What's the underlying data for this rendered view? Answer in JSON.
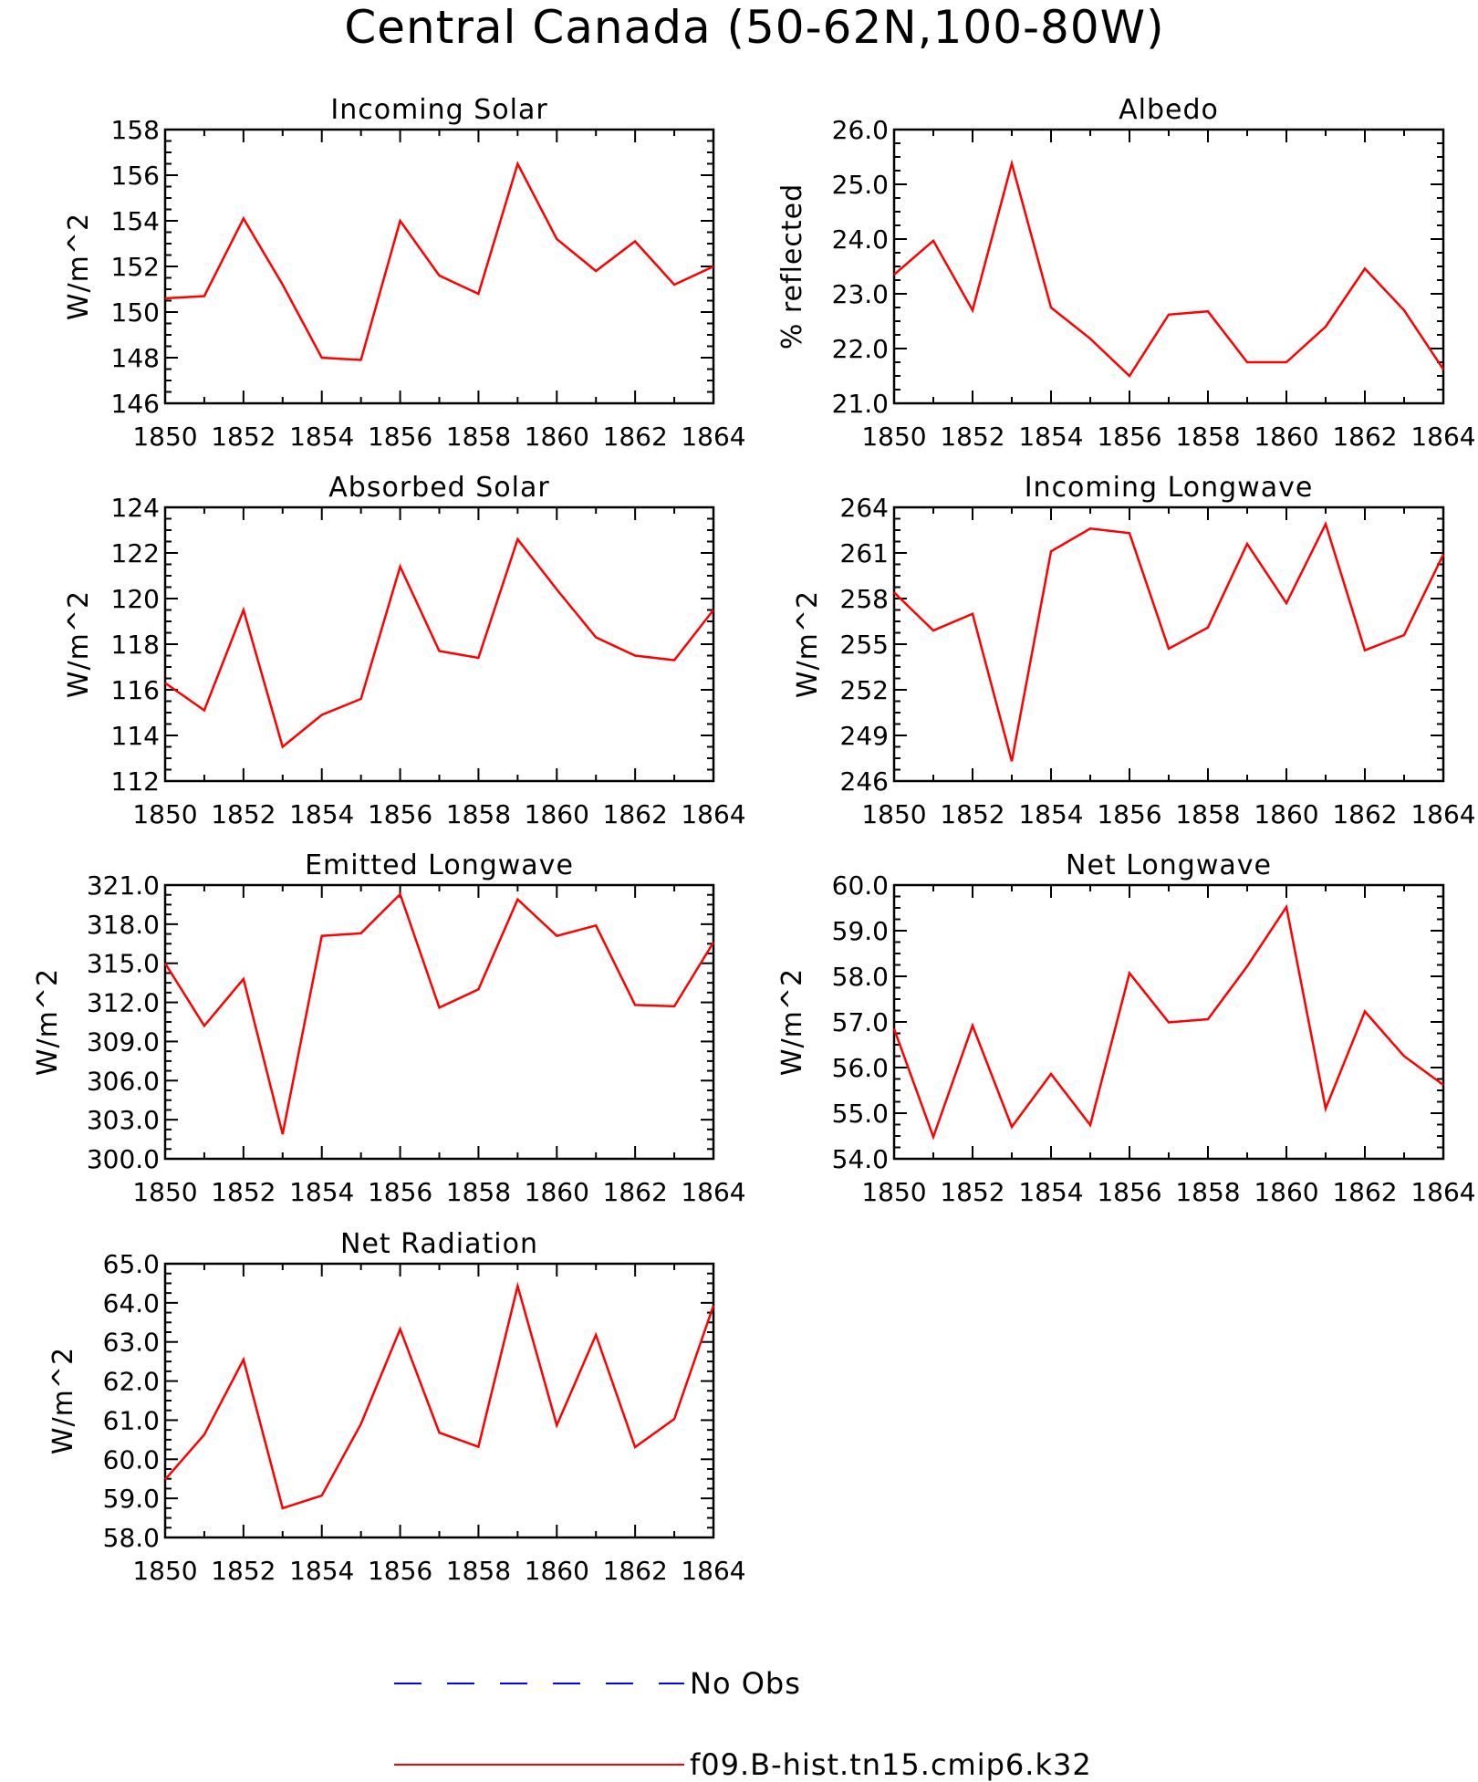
{
  "figure_title": "Central Canada (50-62N,100-80W)",
  "legend": [
    {
      "label": "No Obs",
      "color": "#0000ff",
      "dash": true
    },
    {
      "label": "f09.B-hist.tn15.cmip6.k32",
      "color": "#ff0000",
      "dash": false
    }
  ],
  "chart_data": [
    {
      "type": "line",
      "title": "Incoming Solar",
      "ylabel": "W/m^2",
      "xlim": [
        1850,
        1864
      ],
      "ylim": [
        146,
        158
      ],
      "yticks": [
        146,
        148,
        150,
        152,
        154,
        156,
        158
      ],
      "ytick_labels": [
        "146",
        "148",
        "150",
        "152",
        "154",
        "156",
        "158"
      ],
      "xticks": [
        1850,
        1852,
        1854,
        1856,
        1858,
        1860,
        1862,
        1864
      ],
      "x": [
        1850,
        1851,
        1852,
        1853,
        1854,
        1855,
        1856,
        1857,
        1858,
        1859,
        1860,
        1861,
        1862,
        1863,
        1864
      ],
      "series": [
        {
          "name": "f09.B-hist.tn15.cmip6.k32",
          "color": "#ff0000",
          "values": [
            150.6,
            150.7,
            154.1,
            151.2,
            148.0,
            147.9,
            154.0,
            151.6,
            150.8,
            156.5,
            153.2,
            151.8,
            153.1,
            151.2,
            152.0
          ]
        }
      ]
    },
    {
      "type": "line",
      "title": "Albedo",
      "ylabel": "% reflected",
      "xlim": [
        1850,
        1864
      ],
      "ylim": [
        21.0,
        26.0
      ],
      "yticks": [
        21,
        22,
        23,
        24,
        25,
        26
      ],
      "ytick_labels": [
        "21.0",
        "22.0",
        "23.0",
        "24.0",
        "25.0",
        "26.0"
      ],
      "xticks": [
        1850,
        1852,
        1854,
        1856,
        1858,
        1860,
        1862,
        1864
      ],
      "x": [
        1850,
        1851,
        1852,
        1853,
        1854,
        1855,
        1856,
        1857,
        1858,
        1859,
        1860,
        1861,
        1862,
        1863,
        1864
      ],
      "series": [
        {
          "name": "f09.B-hist.tn15.cmip6.k32",
          "color": "#ff0000",
          "values": [
            23.35,
            23.97,
            22.7,
            25.38,
            22.75,
            22.18,
            21.5,
            22.62,
            22.68,
            21.75,
            21.75,
            22.4,
            23.46,
            22.7,
            21.62
          ]
        }
      ]
    },
    {
      "type": "line",
      "title": "Absorbed Solar",
      "ylabel": "W/m^2",
      "xlim": [
        1850,
        1864
      ],
      "ylim": [
        112,
        124
      ],
      "yticks": [
        112,
        114,
        116,
        118,
        120,
        122,
        124
      ],
      "ytick_labels": [
        "112",
        "114",
        "116",
        "118",
        "120",
        "122",
        "124"
      ],
      "xticks": [
        1850,
        1852,
        1854,
        1856,
        1858,
        1860,
        1862,
        1864
      ],
      "x": [
        1850,
        1851,
        1852,
        1853,
        1854,
        1855,
        1856,
        1857,
        1858,
        1859,
        1860,
        1861,
        1862,
        1863,
        1864
      ],
      "series": [
        {
          "name": "f09.B-hist.tn15.cmip6.k32",
          "color": "#ff0000",
          "values": [
            116.3,
            115.1,
            119.5,
            113.5,
            114.9,
            115.6,
            121.4,
            117.7,
            117.4,
            122.6,
            120.4,
            118.3,
            117.5,
            117.3,
            119.5
          ]
        }
      ]
    },
    {
      "type": "line",
      "title": "Incoming Longwave",
      "ylabel": "W/m^2",
      "xlim": [
        1850,
        1864
      ],
      "ylim": [
        246,
        264
      ],
      "yticks": [
        246,
        249,
        252,
        255,
        258,
        261,
        264
      ],
      "ytick_labels": [
        "246",
        "249",
        "252",
        "255",
        "258",
        "261",
        "264"
      ],
      "xticks": [
        1850,
        1852,
        1854,
        1856,
        1858,
        1860,
        1862,
        1864
      ],
      "x": [
        1850,
        1851,
        1852,
        1853,
        1854,
        1855,
        1856,
        1857,
        1858,
        1859,
        1860,
        1861,
        1862,
        1863,
        1864
      ],
      "series": [
        {
          "name": "f09.B-hist.tn15.cmip6.k32",
          "color": "#ff0000",
          "values": [
            258.4,
            255.9,
            257.0,
            247.3,
            261.1,
            262.6,
            262.3,
            254.7,
            256.1,
            261.6,
            257.7,
            262.9,
            254.6,
            255.6,
            260.9
          ]
        }
      ]
    },
    {
      "type": "line",
      "title": "Emitted Longwave",
      "ylabel": "W/m^2",
      "xlim": [
        1850,
        1864
      ],
      "ylim": [
        300.0,
        321.0
      ],
      "yticks": [
        300,
        303,
        306,
        309,
        312,
        315,
        318,
        321
      ],
      "ytick_labels": [
        "300.0",
        "303.0",
        "306.0",
        "309.0",
        "312.0",
        "315.0",
        "318.0",
        "321.0"
      ],
      "xticks": [
        1850,
        1852,
        1854,
        1856,
        1858,
        1860,
        1862,
        1864
      ],
      "x": [
        1850,
        1851,
        1852,
        1853,
        1854,
        1855,
        1856,
        1857,
        1858,
        1859,
        1860,
        1861,
        1862,
        1863,
        1864
      ],
      "series": [
        {
          "name": "f09.B-hist.tn15.cmip6.k32",
          "color": "#ff0000",
          "values": [
            315.0,
            310.2,
            313.8,
            301.9,
            317.1,
            317.3,
            320.3,
            311.6,
            313.0,
            319.9,
            317.1,
            317.9,
            311.8,
            311.7,
            316.6
          ]
        }
      ]
    },
    {
      "type": "line",
      "title": "Net Longwave",
      "ylabel": "W/m^2",
      "xlim": [
        1850,
        1864
      ],
      "ylim": [
        54.0,
        60.0
      ],
      "yticks": [
        54,
        55,
        56,
        57,
        58,
        59,
        60
      ],
      "ytick_labels": [
        "54.0",
        "55.0",
        "56.0",
        "57.0",
        "58.0",
        "59.0",
        "60.0"
      ],
      "xticks": [
        1850,
        1852,
        1854,
        1856,
        1858,
        1860,
        1862,
        1864
      ],
      "x": [
        1850,
        1851,
        1852,
        1853,
        1854,
        1855,
        1856,
        1857,
        1858,
        1859,
        1860,
        1861,
        1862,
        1863,
        1864
      ],
      "series": [
        {
          "name": "f09.B-hist.tn15.cmip6.k32",
          "color": "#ff0000",
          "values": [
            56.85,
            54.48,
            56.92,
            54.7,
            55.86,
            54.74,
            58.07,
            56.99,
            57.06,
            58.22,
            59.52,
            55.1,
            57.23,
            56.25,
            55.62
          ]
        }
      ]
    },
    {
      "type": "line",
      "title": "Net Radiation",
      "ylabel": "W/m^2",
      "xlim": [
        1850,
        1864
      ],
      "ylim": [
        58.0,
        65.0
      ],
      "yticks": [
        58,
        59,
        60,
        61,
        62,
        63,
        64,
        65
      ],
      "ytick_labels": [
        "58.0",
        "59.0",
        "60.0",
        "61.0",
        "62.0",
        "63.0",
        "64.0",
        "65.0"
      ],
      "xticks": [
        1850,
        1852,
        1854,
        1856,
        1858,
        1860,
        1862,
        1864
      ],
      "x": [
        1850,
        1851,
        1852,
        1853,
        1854,
        1855,
        1856,
        1857,
        1858,
        1859,
        1860,
        1861,
        1862,
        1863,
        1864
      ],
      "series": [
        {
          "name": "f09.B-hist.tn15.cmip6.k32",
          "color": "#ff0000",
          "values": [
            59.48,
            60.63,
            62.55,
            58.75,
            59.07,
            60.9,
            63.33,
            60.68,
            60.32,
            64.43,
            60.87,
            63.18,
            60.31,
            61.03,
            63.93
          ]
        }
      ]
    }
  ]
}
